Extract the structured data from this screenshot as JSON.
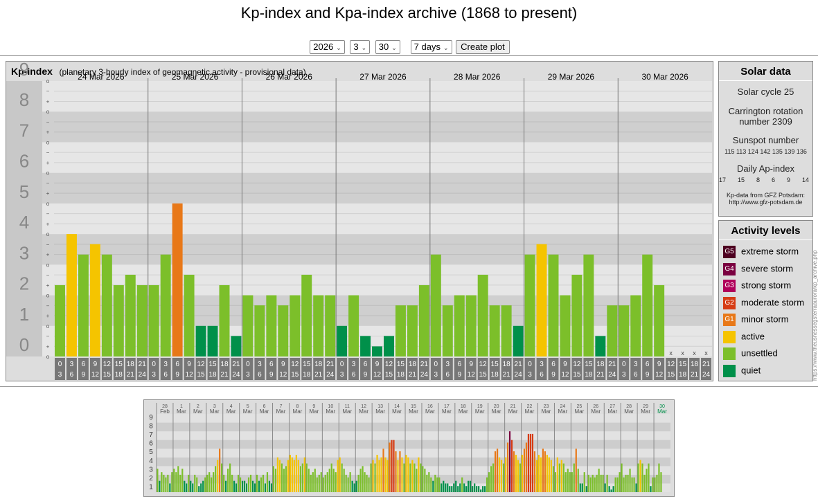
{
  "page": {
    "title": "Kp-index and Kpa-index archive (1868 to present)"
  },
  "controls": {
    "year": "2026",
    "month": "3",
    "day": "30",
    "span": "7 days",
    "button": "Create plot"
  },
  "panel": {
    "heading": "Kp-index",
    "subheading": "(planetary 3-hourly index of geomagnetic activity - provisional data)"
  },
  "solar": {
    "heading": "Solar data",
    "cycle": "Solar cycle 25",
    "carrington1": "Carrington rotation",
    "carrington2": "number 2309",
    "sunspot_label": "Sunspot number",
    "sunspot_values": "115 113 124 142 135 139 136",
    "ap_label": "Daily Ap-index",
    "ap_values": "17  15  8  6  9  14  ---",
    "credit1": "Kp-data from GFZ Potsdam:",
    "credit2": "http://www.gfz-potsdam.de"
  },
  "activity": {
    "heading": "Activity levels",
    "items": [
      {
        "tag": "G5",
        "label": "extreme storm",
        "color": "#4d0020"
      },
      {
        "tag": "G4",
        "label": "severe storm",
        "color": "#7a0040"
      },
      {
        "tag": "G3",
        "label": "strong storm",
        "color": "#b0005a"
      },
      {
        "tag": "G2",
        "label": "moderate storm",
        "color": "#d63c14"
      },
      {
        "tag": "G1",
        "label": "minor storm",
        "color": "#e87818"
      },
      {
        "tag": "",
        "label": "active",
        "color": "#f5c400"
      },
      {
        "tag": "",
        "label": "unsettled",
        "color": "#7cbf2a"
      },
      {
        "tag": "",
        "label": "quiet",
        "color": "#00904a"
      }
    ]
  },
  "side_url": "https://www.theusnessegsterraaurora/kp_archive.php",
  "chart_data": [
    {
      "type": "bar",
      "ylim": [
        0,
        9
      ],
      "y_ticks": [
        "0",
        "1",
        "2",
        "3",
        "4",
        "5",
        "6",
        "7",
        "8",
        "9"
      ],
      "sub_ticks": [
        "+",
        "o",
        "−"
      ],
      "days": [
        "24 Mar 2026",
        "25 Mar 2026",
        "26 Mar 2026",
        "27 Mar 2026",
        "28 Mar 2026",
        "29 Mar 2026",
        "30 Mar 2026"
      ],
      "hour_start": [
        "0",
        "3",
        "6",
        "9",
        "12",
        "15",
        "18",
        "21"
      ],
      "hour_end": [
        "3",
        "6",
        "9",
        "12",
        "15",
        "18",
        "21",
        "24"
      ],
      "missing_mark": "x",
      "values": [
        [
          2.33,
          4.0,
          3.33,
          3.67,
          3.33,
          2.33,
          2.67,
          2.33
        ],
        [
          2.33,
          3.33,
          5.0,
          2.67,
          1.0,
          1.0,
          2.33,
          0.67
        ],
        [
          2.0,
          1.67,
          2.0,
          1.67,
          2.0,
          2.67,
          2.0,
          2.0
        ],
        [
          1.0,
          2.0,
          0.67,
          0.33,
          0.67,
          1.67,
          1.67,
          2.33
        ],
        [
          3.33,
          1.67,
          2.0,
          2.0,
          2.67,
          1.67,
          1.67,
          1.0
        ],
        [
          3.33,
          3.67,
          3.33,
          2.0,
          2.67,
          3.33,
          0.67,
          1.67
        ],
        [
          1.67,
          2.0,
          3.33,
          2.33,
          null,
          null,
          null,
          null
        ]
      ],
      "colors": {
        "quiet": "#00904a",
        "unsettled": "#7cbf2a",
        "active": "#f5c400",
        "minor": "#e87818"
      }
    },
    {
      "type": "bar",
      "ylim": [
        0,
        9
      ],
      "y_ticks": [
        "1",
        "2",
        "3",
        "4",
        "5",
        "6",
        "7",
        "8",
        "9"
      ],
      "days": [
        {
          "d": "28",
          "m": "Feb"
        },
        {
          "d": "1",
          "m": "Mar"
        },
        {
          "d": "2",
          "m": "Mar"
        },
        {
          "d": "3",
          "m": "Mar"
        },
        {
          "d": "4",
          "m": "Mar"
        },
        {
          "d": "5",
          "m": "Mar"
        },
        {
          "d": "6",
          "m": "Mar"
        },
        {
          "d": "7",
          "m": "Mar"
        },
        {
          "d": "8",
          "m": "Mar"
        },
        {
          "d": "9",
          "m": "Mar"
        },
        {
          "d": "10",
          "m": "Mar"
        },
        {
          "d": "11",
          "m": "Mar"
        },
        {
          "d": "12",
          "m": "Mar"
        },
        {
          "d": "13",
          "m": "Mar"
        },
        {
          "d": "14",
          "m": "Mar"
        },
        {
          "d": "15",
          "m": "Mar"
        },
        {
          "d": "16",
          "m": "Mar"
        },
        {
          "d": "17",
          "m": "Mar"
        },
        {
          "d": "18",
          "m": "Mar"
        },
        {
          "d": "19",
          "m": "Mar"
        },
        {
          "d": "20",
          "m": "Mar"
        },
        {
          "d": "21",
          "m": "Mar"
        },
        {
          "d": "22",
          "m": "Mar"
        },
        {
          "d": "23",
          "m": "Mar"
        },
        {
          "d": "24",
          "m": "Mar"
        },
        {
          "d": "25",
          "m": "Mar"
        },
        {
          "d": "26",
          "m": "Mar"
        },
        {
          "d": "27",
          "m": "Mar"
        },
        {
          "d": "28",
          "m": "Mar"
        },
        {
          "d": "29",
          "m": "Mar"
        },
        {
          "d": "30",
          "m": "Mar"
        }
      ],
      "highlight_day": "30",
      "values": [
        [
          2.7,
          1.3,
          2.3,
          2.0,
          1.7,
          2.0,
          1.0,
          2.3
        ],
        [
          2.7,
          2.3,
          3.0,
          2.0,
          2.7,
          1.3,
          1.0,
          2.0
        ],
        [
          1.3,
          1.0,
          2.0,
          1.7,
          0.7,
          1.0,
          1.3,
          1.7
        ],
        [
          2.0,
          2.3,
          1.7,
          2.3,
          3.0,
          3.7,
          5.0,
          3.3
        ],
        [
          2.0,
          1.3,
          2.7,
          3.3,
          2.0,
          1.3,
          1.0,
          2.0
        ],
        [
          1.7,
          1.3,
          1.3,
          1.0,
          1.7,
          2.0,
          1.3,
          1.0
        ],
        [
          2.0,
          1.3,
          1.7,
          2.0,
          1.0,
          2.3,
          1.3,
          1.0
        ],
        [
          3.0,
          2.7,
          4.0,
          3.7,
          3.3,
          2.7,
          3.0,
          3.7
        ],
        [
          4.3,
          4.0,
          3.7,
          4.3,
          3.7,
          3.0,
          3.3,
          4.0
        ],
        [
          3.3,
          2.7,
          2.0,
          2.3,
          2.7,
          1.7,
          2.0,
          2.3
        ],
        [
          1.7,
          2.0,
          2.3,
          2.7,
          3.3,
          2.7,
          2.3,
          3.7
        ],
        [
          4.0,
          3.3,
          2.7,
          2.0,
          1.7,
          2.3,
          1.3,
          1.0
        ],
        [
          1.3,
          2.0,
          2.7,
          3.0,
          2.3,
          2.0,
          1.7,
          3.3
        ],
        [
          3.7,
          3.3,
          4.3,
          3.7,
          4.0,
          5.0,
          4.0,
          3.7
        ],
        [
          5.7,
          6.0,
          6.0,
          4.7,
          3.7,
          4.7,
          4.0,
          3.3
        ],
        [
          4.3,
          4.0,
          3.3,
          3.7,
          3.3,
          2.7,
          4.0,
          3.3
        ],
        [
          3.0,
          2.7,
          2.0,
          2.3,
          1.7,
          1.3,
          2.0,
          1.7
        ],
        [
          1.7,
          1.0,
          1.3,
          1.0,
          1.0,
          0.7,
          0.7,
          1.0
        ],
        [
          1.3,
          0.7,
          1.0,
          1.7,
          1.0,
          0.7,
          1.3,
          1.3
        ],
        [
          0.7,
          1.0,
          0.7,
          0.7,
          0.3,
          0.7,
          0.7,
          1.7
        ],
        [
          2.3,
          3.0,
          3.3,
          4.7,
          5.0,
          4.0,
          3.7,
          3.3
        ],
        [
          4.0,
          5.7,
          7.0,
          6.0,
          4.7,
          4.3,
          3.7,
          3.3
        ],
        [
          4.3,
          5.0,
          5.7,
          6.7,
          6.7,
          6.7,
          4.7,
          3.7
        ],
        [
          4.3,
          4.0,
          5.0,
          4.7,
          4.3,
          4.0,
          3.7,
          3.0
        ],
        [
          2.3,
          4.0,
          3.3,
          3.7,
          3.3,
          2.3,
          2.7,
          2.3
        ],
        [
          2.3,
          3.3,
          5.0,
          2.7,
          1.0,
          1.0,
          2.3,
          0.7
        ],
        [
          2.0,
          1.7,
          2.0,
          1.7,
          2.0,
          2.7,
          2.0,
          2.0
        ],
        [
          1.0,
          2.0,
          0.7,
          0.3,
          0.7,
          1.7,
          1.7,
          2.3
        ],
        [
          3.3,
          1.7,
          2.0,
          2.0,
          2.7,
          1.7,
          1.7,
          1.0
        ],
        [
          3.3,
          3.7,
          3.3,
          2.0,
          2.7,
          3.3,
          0.7,
          1.7
        ],
        [
          1.7,
          2.0,
          3.3,
          2.3,
          null,
          null,
          null,
          null
        ]
      ]
    }
  ]
}
